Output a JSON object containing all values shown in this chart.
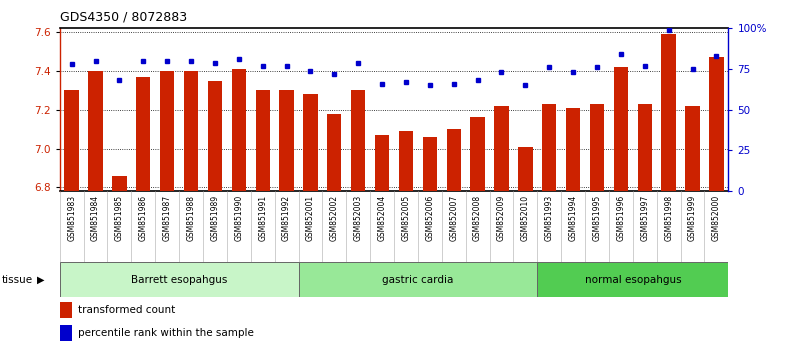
{
  "title": "GDS4350 / 8072883",
  "samples": [
    "GSM851983",
    "GSM851984",
    "GSM851985",
    "GSM851986",
    "GSM851987",
    "GSM851988",
    "GSM851989",
    "GSM851990",
    "GSM851991",
    "GSM851992",
    "GSM852001",
    "GSM852002",
    "GSM852003",
    "GSM852004",
    "GSM852005",
    "GSM852006",
    "GSM852007",
    "GSM852008",
    "GSM852009",
    "GSM852010",
    "GSM851993",
    "GSM851994",
    "GSM851995",
    "GSM851996",
    "GSM851997",
    "GSM851998",
    "GSM851999",
    "GSM852000"
  ],
  "bar_values": [
    7.3,
    7.4,
    6.86,
    7.37,
    7.4,
    7.4,
    7.35,
    7.41,
    7.3,
    7.3,
    7.28,
    7.18,
    7.3,
    7.07,
    7.09,
    7.06,
    7.1,
    7.16,
    7.22,
    7.01,
    7.23,
    7.21,
    7.23,
    7.42,
    7.23,
    7.59,
    7.22,
    7.47
  ],
  "percentile_values": [
    78,
    80,
    68,
    80,
    80,
    80,
    79,
    81,
    77,
    77,
    74,
    72,
    79,
    66,
    67,
    65,
    66,
    68,
    73,
    65,
    76,
    73,
    76,
    84,
    77,
    99,
    75,
    83
  ],
  "groups": [
    {
      "label": "Barrett esopahgus",
      "start": 0,
      "end": 10,
      "color": "#c8f5c8"
    },
    {
      "label": "gastric cardia",
      "start": 10,
      "end": 20,
      "color": "#98e898"
    },
    {
      "label": "normal esopahgus",
      "start": 20,
      "end": 28,
      "color": "#52cc52"
    }
  ],
  "ylim_left": [
    6.78,
    7.62
  ],
  "ylim_right": [
    0,
    100
  ],
  "yticks_left": [
    6.8,
    7.0,
    7.2,
    7.4,
    7.6
  ],
  "yticks_right": [
    0,
    25,
    50,
    75,
    100
  ],
  "ytick_labels_right": [
    "0",
    "25",
    "50",
    "75",
    "100%"
  ],
  "bar_color": "#cc2200",
  "dot_color": "#0000cc",
  "background_color": "#ffffff",
  "grid_color": "#000000",
  "legend_bar_label": "transformed count",
  "legend_dot_label": "percentile rank within the sample",
  "tissue_label": "tissue"
}
